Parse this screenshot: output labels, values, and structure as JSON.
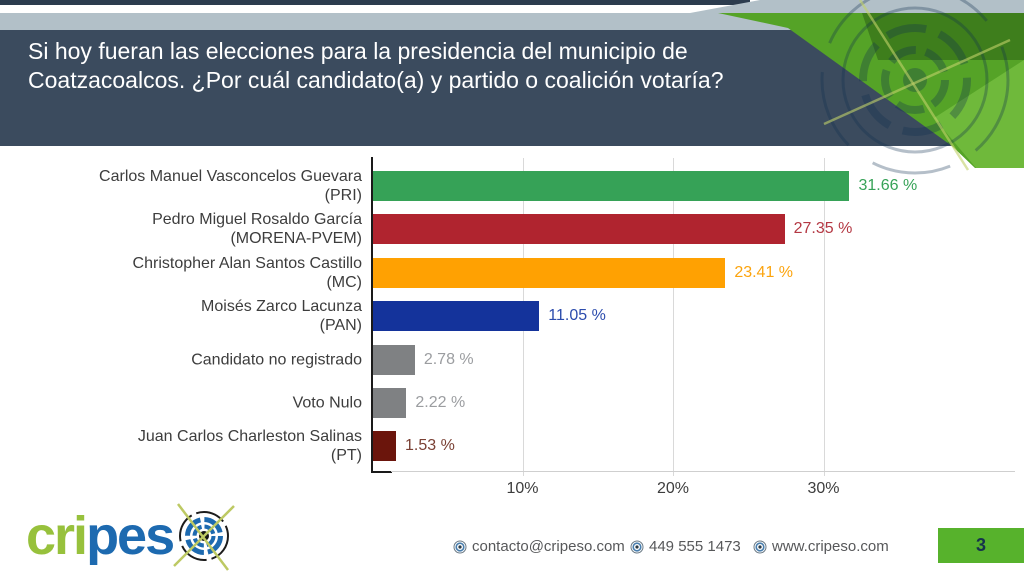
{
  "colors": {
    "top-strip": "#2c3c4e",
    "band-gray": "#b2c0c8",
    "header-bg": "#3b4b5e",
    "accent-green": "#55a327",
    "accent-green-dark": "#3c7a1c",
    "accent-green-light": "#72bb3e",
    "accent-green-bright": "#57b22c",
    "logo-green": "#97c13c",
    "logo-blue": "#1d6ab0",
    "text-dark": "#3d3d3d",
    "footer-text": "#57585a"
  },
  "slide": {
    "title": "Si hoy fueran las elecciones para la presidencia del municipio de Coatzacoalcos. ¿Por cuál candidato(a) y partido o coalición votaría?",
    "page_number": "3"
  },
  "chart_data": {
    "type": "bar",
    "orientation": "horizontal",
    "unit": "%",
    "xlim": [
      0,
      33
    ],
    "grid": true,
    "x_ticks": [
      {
        "label": "10%",
        "pct": 10
      },
      {
        "label": "20%",
        "pct": 20
      },
      {
        "label": "30%",
        "pct": 30
      }
    ],
    "items": [
      {
        "name": "Carlos Manuel Vasconcelos Guevara",
        "party": "(PRI)",
        "value": 31.66,
        "value_label": "31.66 %",
        "bar_color": "#36a257",
        "value_color": "#36a257"
      },
      {
        "name": "Pedro Miguel Rosaldo García",
        "party": "(MORENA-PVEM)",
        "value": 27.35,
        "value_label": "27.35 %",
        "bar_color": "#b0242f",
        "value_color": "#b43843"
      },
      {
        "name": "Christopher Alan Santos Castillo",
        "party": "(MC)",
        "value": 23.41,
        "value_label": "23.41 %",
        "bar_color": "#ffa102",
        "value_color": "#fca40e"
      },
      {
        "name": "Moisés Zarco Lacunza",
        "party": "(PAN)",
        "value": 11.05,
        "value_label": "11.05 %",
        "bar_color": "#14339b",
        "value_color": "#2c4cad"
      },
      {
        "name": "Candidato no registrado",
        "party": null,
        "value": 2.78,
        "value_label": "2.78 %",
        "bar_color": "#7f8183",
        "value_color": "#9b9da0"
      },
      {
        "name": "Voto Nulo",
        "party": null,
        "value": 2.22,
        "value_label": "2.22 %",
        "bar_color": "#7f8183",
        "value_color": "#9b9da0"
      },
      {
        "name": "Juan Carlos Charleston Salinas",
        "party": "(PT)",
        "value": 1.53,
        "value_label": "1.53 %",
        "bar_color": "#6b150c",
        "value_color": "#7a4034"
      }
    ]
  },
  "footer": {
    "logo_text_green": "cri",
    "logo_text_blue": "pes",
    "contacts": [
      {
        "icon": "bullseye-icon",
        "text": "contacto@cripeso.com"
      },
      {
        "icon": "bullseye-icon",
        "text": "449 555 1473"
      },
      {
        "icon": "bullseye-icon",
        "text": "www.cripeso.com"
      }
    ]
  }
}
